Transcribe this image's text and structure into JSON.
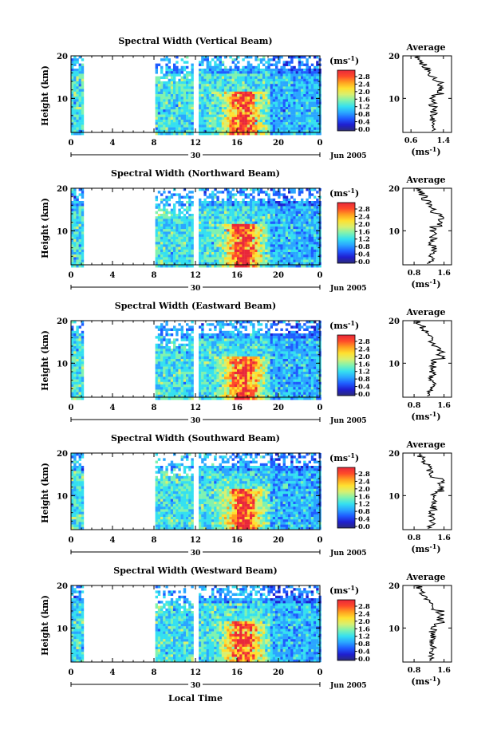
{
  "figure": {
    "xlabel": "Local Time",
    "date_labels": {
      "day": "30",
      "month": "Jun 2005"
    },
    "colorbar": {
      "unit": "(ms",
      "unit_exp": "-1",
      "unit_close": ")",
      "tick_labels": [
        "2.8",
        "2.4",
        "2.0",
        "1.6",
        "1.2",
        "0.8",
        "0.4",
        "0.0"
      ],
      "colors": [
        "#2b2b7a",
        "#1f1fd0",
        "#1f5cff",
        "#2aa6ff",
        "#35e0f0",
        "#7ff2b0",
        "#d8f070",
        "#ffe030",
        "#ffa020",
        "#ff4a2a",
        "#e8283a"
      ]
    }
  },
  "chart_data": [
    {
      "type": "heatmap",
      "title": "Spectral Width (Vertical Beam)",
      "ylabel": "Height (km)",
      "x_ticks": [
        "0",
        "4",
        "8",
        "12",
        "16",
        "20",
        "0"
      ],
      "xlim": [
        0,
        24
      ],
      "y_ticks": [
        "20",
        "10"
      ],
      "ylim": [
        2,
        20
      ],
      "side_panel": {
        "title": "Average",
        "x_ticks": [
          "0.6",
          "1.4"
        ],
        "xlim": [
          0.4,
          1.6
        ],
        "xlabel_base": "(ms",
        "xlabel_exp": "-1",
        "xlabel_close": ")",
        "y_ticks": [
          "20",
          "10"
        ]
      }
    },
    {
      "type": "heatmap",
      "title": "Spectral Width (Northward Beam)",
      "ylabel": "Height (km)",
      "x_ticks": [
        "0",
        "4",
        "8",
        "12",
        "16",
        "20",
        "0"
      ],
      "xlim": [
        0,
        24
      ],
      "y_ticks": [
        "20",
        "10"
      ],
      "ylim": [
        2,
        20
      ],
      "side_panel": {
        "title": "Average",
        "x_ticks": [
          "0.8",
          "1.6"
        ],
        "xlim": [
          0.5,
          1.8
        ],
        "xlabel_base": "(ms",
        "xlabel_exp": "-1",
        "xlabel_close": ")",
        "y_ticks": [
          "20",
          "10"
        ]
      }
    },
    {
      "type": "heatmap",
      "title": "Spectral Width (Eastward Beam)",
      "ylabel": "Height (km)",
      "x_ticks": [
        "0",
        "4",
        "8",
        "12",
        "16",
        "20",
        "0"
      ],
      "xlim": [
        0,
        24
      ],
      "y_ticks": [
        "20",
        "10"
      ],
      "ylim": [
        2,
        20
      ],
      "side_panel": {
        "title": "Average",
        "x_ticks": [
          "0.8",
          "1.6"
        ],
        "xlim": [
          0.5,
          1.8
        ],
        "xlabel_base": "(ms",
        "xlabel_exp": "-1",
        "xlabel_close": ")",
        "y_ticks": [
          "20",
          "10"
        ]
      }
    },
    {
      "type": "heatmap",
      "title": "Spectral Width (Southward Beam)",
      "ylabel": "Height (km)",
      "x_ticks": [
        "0",
        "4",
        "8",
        "12",
        "16",
        "20",
        "0"
      ],
      "xlim": [
        0,
        24
      ],
      "y_ticks": [
        "20",
        "10"
      ],
      "ylim": [
        2,
        20
      ],
      "side_panel": {
        "title": "Average",
        "x_ticks": [
          "0.8",
          "1.6"
        ],
        "xlim": [
          0.5,
          1.8
        ],
        "xlabel_base": "(ms",
        "xlabel_exp": "-1",
        "xlabel_close": ")",
        "y_ticks": [
          "20",
          "10"
        ]
      }
    },
    {
      "type": "heatmap",
      "title": "Spectral Width (Westward Beam)",
      "ylabel": "Height (km)",
      "x_ticks": [
        "0",
        "4",
        "8",
        "12",
        "16",
        "20",
        "0"
      ],
      "xlim": [
        0,
        24
      ],
      "y_ticks": [
        "20",
        "10"
      ],
      "ylim": [
        2,
        20
      ],
      "side_panel": {
        "title": "Average",
        "x_ticks": [
          "0.8",
          "1.6"
        ],
        "xlim": [
          0.5,
          1.8
        ],
        "xlabel_base": "(ms",
        "xlabel_exp": "-1",
        "xlabel_close": ")",
        "y_ticks": [
          "20",
          "10"
        ]
      }
    }
  ]
}
